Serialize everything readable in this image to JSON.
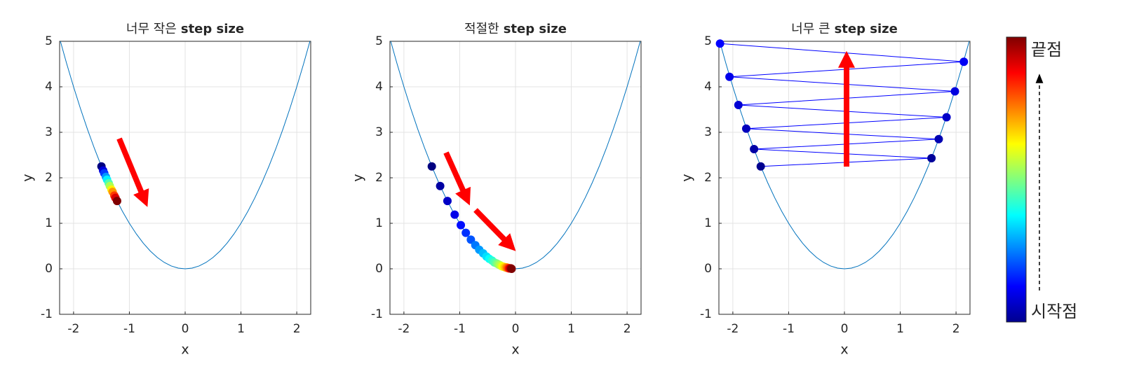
{
  "charts": [
    {
      "type": "scatter",
      "title": [
        "너무 작은",
        "step size"
      ],
      "xlabel": "x",
      "ylabel": "y",
      "xlim": [
        -2.25,
        2.25
      ],
      "ylim": [
        -1,
        5
      ],
      "xticks": [
        -2,
        -1,
        0,
        1,
        2
      ],
      "yticks": [
        -1,
        0,
        1,
        2,
        3,
        4,
        5
      ],
      "grid": true,
      "series": [
        {
          "mode": "line",
          "color": "#0072bd",
          "x": [
            -2.25,
            -2.125,
            -2,
            -1.875,
            -1.75,
            -1.625,
            -1.5,
            -1.375,
            -1.25,
            -1.125,
            -1,
            -0.875,
            -0.75,
            -0.625,
            -0.5,
            -0.375,
            -0.25,
            -0.125,
            0,
            0.125,
            0.25,
            0.375,
            0.5,
            0.625,
            0.75,
            0.875,
            1,
            1.125,
            1.25,
            1.375,
            1.5,
            1.625,
            1.75,
            1.875,
            2,
            2.125,
            2.25
          ],
          "values": [
            5.0625,
            4.515625,
            4,
            3.515625,
            3.0625,
            2.640625,
            2.25,
            1.890625,
            1.5625,
            1.265625,
            1,
            0.765625,
            0.5625,
            0.390625,
            0.25,
            0.140625,
            0.0625,
            0.015625,
            0,
            0.015625,
            0.0625,
            0.140625,
            0.25,
            0.390625,
            0.5625,
            0.765625,
            1,
            1.265625,
            1.5625,
            1.890625,
            2.25,
            2.640625,
            3.0625,
            3.515625,
            4,
            4.515625,
            5.0625
          ]
        },
        {
          "mode": "markers",
          "colormap": "jet",
          "x": [
            -1.5,
            -1.47,
            -1.45,
            -1.42,
            -1.4,
            -1.37,
            -1.35,
            -1.32,
            -1.3,
            -1.27,
            -1.25,
            -1.22
          ],
          "values": [
            2.25,
            2.16,
            2.1,
            2.02,
            1.96,
            1.88,
            1.82,
            1.74,
            1.69,
            1.61,
            1.56,
            1.49
          ]
        }
      ]
    },
    {
      "type": "scatter",
      "title": [
        "적절한",
        "step size"
      ],
      "xlabel": "x",
      "ylabel": "y",
      "xlim": [
        -2.25,
        2.25
      ],
      "ylim": [
        -1,
        5
      ],
      "xticks": [
        -2,
        -1,
        0,
        1,
        2
      ],
      "yticks": [
        -1,
        0,
        1,
        2,
        3,
        4,
        5
      ],
      "grid": true,
      "series": [
        {
          "mode": "line",
          "color": "#0072bd",
          "x": [
            -2.25,
            -2.125,
            -2,
            -1.875,
            -1.75,
            -1.625,
            -1.5,
            -1.375,
            -1.25,
            -1.125,
            -1,
            -0.875,
            -0.75,
            -0.625,
            -0.5,
            -0.375,
            -0.25,
            -0.125,
            0,
            0.125,
            0.25,
            0.375,
            0.5,
            0.625,
            0.75,
            0.875,
            1,
            1.125,
            1.25,
            1.375,
            1.5,
            1.625,
            1.75,
            1.875,
            2,
            2.125,
            2.25
          ],
          "values": [
            5.0625,
            4.515625,
            4,
            3.515625,
            3.0625,
            2.640625,
            2.25,
            1.890625,
            1.5625,
            1.265625,
            1,
            0.765625,
            0.5625,
            0.390625,
            0.25,
            0.140625,
            0.0625,
            0.015625,
            0,
            0.015625,
            0.0625,
            0.140625,
            0.25,
            0.390625,
            0.5625,
            0.765625,
            1,
            1.265625,
            1.5625,
            1.890625,
            2.25,
            2.640625,
            3.0625,
            3.515625,
            4,
            4.515625,
            5.0625
          ]
        },
        {
          "mode": "markers",
          "colormap": "jet",
          "x": [
            -1.5,
            -1.35,
            -1.22,
            -1.09,
            -0.98,
            -0.89,
            -0.8,
            -0.72,
            -0.65,
            -0.58,
            -0.52,
            -0.47,
            -0.42,
            -0.38,
            -0.34,
            -0.31,
            -0.28,
            -0.25,
            -0.23,
            -0.2,
            -0.18,
            -0.16,
            -0.15,
            -0.13,
            -0.12,
            -0.11,
            -0.1,
            -0.09,
            -0.08,
            -0.07
          ],
          "values": [
            2.25,
            1.82,
            1.49,
            1.19,
            0.96,
            0.79,
            0.64,
            0.52,
            0.42,
            0.34,
            0.27,
            0.22,
            0.18,
            0.14,
            0.12,
            0.1,
            0.08,
            0.06,
            0.05,
            0.04,
            0.03,
            0.03,
            0.02,
            0.02,
            0.01,
            0.01,
            0.01,
            0.01,
            0.01,
            0
          ]
        }
      ]
    },
    {
      "type": "scatter",
      "title": [
        "너무 큰",
        "step size"
      ],
      "xlabel": "x",
      "ylabel": "y",
      "xlim": [
        -2.25,
        2.25
      ],
      "ylim": [
        -1,
        5
      ],
      "xticks": [
        -2,
        -1,
        0,
        1,
        2
      ],
      "yticks": [
        -1,
        0,
        1,
        2,
        3,
        4,
        5
      ],
      "grid": true,
      "series": [
        {
          "mode": "line",
          "color": "#0072bd",
          "x": [
            -2.25,
            -2.125,
            -2,
            -1.875,
            -1.75,
            -1.625,
            -1.5,
            -1.375,
            -1.25,
            -1.125,
            -1,
            -0.875,
            -0.75,
            -0.625,
            -0.5,
            -0.375,
            -0.25,
            -0.125,
            0,
            0.125,
            0.25,
            0.375,
            0.5,
            0.625,
            0.75,
            0.875,
            1,
            1.125,
            1.25,
            1.375,
            1.5,
            1.625,
            1.75,
            1.875,
            2,
            2.125,
            2.25
          ],
          "values": [
            5.0625,
            4.515625,
            4,
            3.515625,
            3.0625,
            2.640625,
            2.25,
            1.890625,
            1.5625,
            1.265625,
            1,
            0.765625,
            0.5625,
            0.390625,
            0.25,
            0.140625,
            0.0625,
            0.015625,
            0,
            0.015625,
            0.0625,
            0.140625,
            0.25,
            0.390625,
            0.5625,
            0.765625,
            1,
            1.265625,
            1.5625,
            1.890625,
            2.25,
            2.640625,
            3.0625,
            3.515625,
            4,
            4.515625,
            5.0625
          ]
        },
        {
          "mode": "lines+markers",
          "line_color": "#0000ff",
          "colors": [
            "#00008f",
            "#00009a",
            "#0000a6",
            "#0000b2",
            "#0000bd",
            "#0000c8",
            "#0000d4",
            "#0000df",
            "#0000ea",
            "#0000f5",
            "#0000ff"
          ],
          "x": [
            -1.5,
            1.56,
            -1.62,
            1.69,
            -1.76,
            1.83,
            -1.9,
            1.98,
            -2.06,
            2.14,
            -2.23
          ],
          "values": [
            2.25,
            2.43,
            2.63,
            2.85,
            3.08,
            3.33,
            3.6,
            3.9,
            4.22,
            4.55,
            4.95
          ]
        }
      ]
    }
  ],
  "colorbar": {
    "top_label": "끝점",
    "bottom_label": "시작점"
  }
}
